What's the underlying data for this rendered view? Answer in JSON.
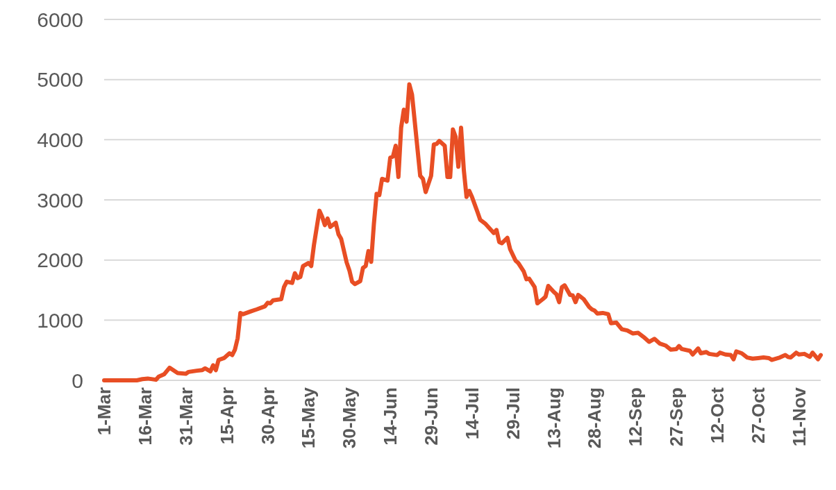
{
  "chart_data": {
    "type": "line",
    "x": [
      "--03-01",
      "--03-09",
      "--03-13",
      "--03-15",
      "--03-17",
      "--03-20",
      "--03-21",
      "--03-23",
      "--03-25",
      "--03-28",
      "--03-31",
      "--04-01",
      "--04-04",
      "--04-06",
      "--04-07",
      "--04-09",
      "--04-10",
      "--04-11",
      "--04-12",
      "--04-14",
      "--04-16",
      "--04-17",
      "--04-18",
      "--04-19",
      "--04-20",
      "--04-21",
      "--04-24",
      "--04-26",
      "--04-29",
      "--04-30",
      "--05-01",
      "--05-02",
      "--05-05",
      "--05-06",
      "--05-07",
      "--05-09",
      "--05-10",
      "--05-11",
      "--05-12",
      "--05-13",
      "--05-15",
      "--05-16",
      "--05-17",
      "--05-19",
      "--05-20",
      "--05-21",
      "--05-22",
      "--05-23",
      "--05-25",
      "--05-26",
      "--05-27",
      "--05-29",
      "--05-30",
      "--05-31",
      "--06-01",
      "--06-03",
      "--06-04",
      "--06-05",
      "--06-06",
      "--06-07",
      "--06-08",
      "--06-09",
      "--06-10",
      "--06-11",
      "--06-13",
      "--06-14",
      "--06-15",
      "--06-16",
      "--06-17",
      "--06-18",
      "--06-19",
      "--06-20",
      "--06-21",
      "--06-22",
      "--06-23",
      "--06-25",
      "--06-26",
      "--06-27",
      "--06-29",
      "--06-30",
      "--07-01",
      "--07-02",
      "--07-04",
      "--07-05",
      "--07-06",
      "--07-07",
      "--07-08",
      "--07-09",
      "--07-10",
      "--07-11",
      "--07-12",
      "--07-13",
      "--07-14",
      "--07-16",
      "--07-17",
      "--07-19",
      "--07-22",
      "--07-23",
      "--07-24",
      "--07-25",
      "--07-27",
      "--07-28",
      "--07-30",
      "--07-31",
      "--08-02",
      "--08-03",
      "--08-04",
      "--08-06",
      "--08-07",
      "--08-09",
      "--08-10",
      "--08-11",
      "--08-13",
      "--08-14",
      "--08-15",
      "--08-16",
      "--08-17",
      "--08-19",
      "--08-20",
      "--08-21",
      "--08-22",
      "--08-24",
      "--08-26",
      "--08-27",
      "--08-28",
      "--08-29",
      "--08-31",
      "--09-02",
      "--09-03",
      "--09-05",
      "--09-07",
      "--09-09",
      "--09-11",
      "--09-13",
      "--09-15",
      "--09-17",
      "--09-19",
      "--09-21",
      "--09-23",
      "--09-25",
      "--09-27",
      "--09-28",
      "--09-29",
      "--10-02",
      "--10-03",
      "--10-05",
      "--10-06",
      "--10-08",
      "--10-09",
      "--10-12",
      "--10-13",
      "--10-15",
      "--10-17",
      "--10-18",
      "--10-19",
      "--10-21",
      "--10-23",
      "--10-25",
      "--10-27",
      "--10-29",
      "--10-31",
      "--11-01",
      "--11-04",
      "--11-06",
      "--11-07",
      "--11-08",
      "--11-10",
      "--11-11",
      "--11-13",
      "--11-15",
      "--11-16",
      "--11-18",
      "--11-19"
    ],
    "series": [
      {
        "color": "#e84e24",
        "values": [
          0,
          0,
          0,
          20,
          30,
          10,
          60,
          100,
          210,
          120,
          110,
          140,
          160,
          170,
          200,
          150,
          250,
          170,
          340,
          370,
          450,
          420,
          510,
          700,
          1120,
          1100,
          1150,
          1180,
          1230,
          1290,
          1280,
          1330,
          1350,
          1550,
          1640,
          1620,
          1780,
          1700,
          1720,
          1900,
          1950,
          1900,
          2250,
          2820,
          2720,
          2580,
          2690,
          2550,
          2620,
          2430,
          2350,
          1960,
          1830,
          1640,
          1600,
          1650,
          1870,
          1900,
          2150,
          1970,
          2600,
          3100,
          3080,
          3350,
          3320,
          3700,
          3720,
          3900,
          3380,
          4200,
          4500,
          4300,
          4920,
          4750,
          4300,
          3400,
          3350,
          3130,
          3400,
          3920,
          3930,
          3980,
          3900,
          3380,
          3380,
          4170,
          4050,
          3550,
          4200,
          3500,
          3050,
          3150,
          3050,
          2800,
          2670,
          2600,
          2450,
          2500,
          2300,
          2280,
          2370,
          2180,
          1990,
          1950,
          1810,
          1680,
          1690,
          1550,
          1280,
          1350,
          1390,
          1570,
          1470,
          1430,
          1300,
          1550,
          1580,
          1420,
          1410,
          1300,
          1420,
          1350,
          1220,
          1180,
          1160,
          1110,
          1120,
          1100,
          950,
          960,
          850,
          830,
          780,
          790,
          720,
          640,
          690,
          610,
          580,
          510,
          520,
          570,
          520,
          490,
          430,
          530,
          450,
          470,
          440,
          420,
          460,
          430,
          420,
          350,
          480,
          450,
          380,
          360,
          370,
          380,
          370,
          340,
          380,
          420,
          390,
          380,
          460,
          430,
          440,
          390,
          460,
          350,
          420
        ]
      }
    ],
    "xlim": [
      "--03-01",
      "--11-19"
    ],
    "xticks": [
      {
        "value": "--03-01",
        "label": "1-Mar"
      },
      {
        "value": "--03-16",
        "label": "16-Mar"
      },
      {
        "value": "--03-31",
        "label": "31-Mar"
      },
      {
        "value": "--04-15",
        "label": "15-Apr"
      },
      {
        "value": "--04-30",
        "label": "30-Apr"
      },
      {
        "value": "--05-15",
        "label": "15-May"
      },
      {
        "value": "--05-30",
        "label": "30-May"
      },
      {
        "value": "--06-14",
        "label": "14-Jun"
      },
      {
        "value": "--06-29",
        "label": "29-Jun"
      },
      {
        "value": "--07-14",
        "label": "14-Jul"
      },
      {
        "value": "--07-29",
        "label": "29-Jul"
      },
      {
        "value": "--08-13",
        "label": "13-Aug"
      },
      {
        "value": "--08-28",
        "label": "28-Aug"
      },
      {
        "value": "--09-12",
        "label": "12-Sep"
      },
      {
        "value": "--09-27",
        "label": "27-Sep"
      },
      {
        "value": "--10-12",
        "label": "12-Oct"
      },
      {
        "value": "--10-27",
        "label": "27-Oct"
      },
      {
        "value": "--11-11",
        "label": "11-Nov"
      }
    ],
    "ylim": [
      0,
      6000
    ],
    "yticks": [
      0,
      1000,
      2000,
      3000,
      4000,
      5000,
      6000
    ],
    "grid": "y",
    "marker": "none",
    "line_style": "solid"
  }
}
